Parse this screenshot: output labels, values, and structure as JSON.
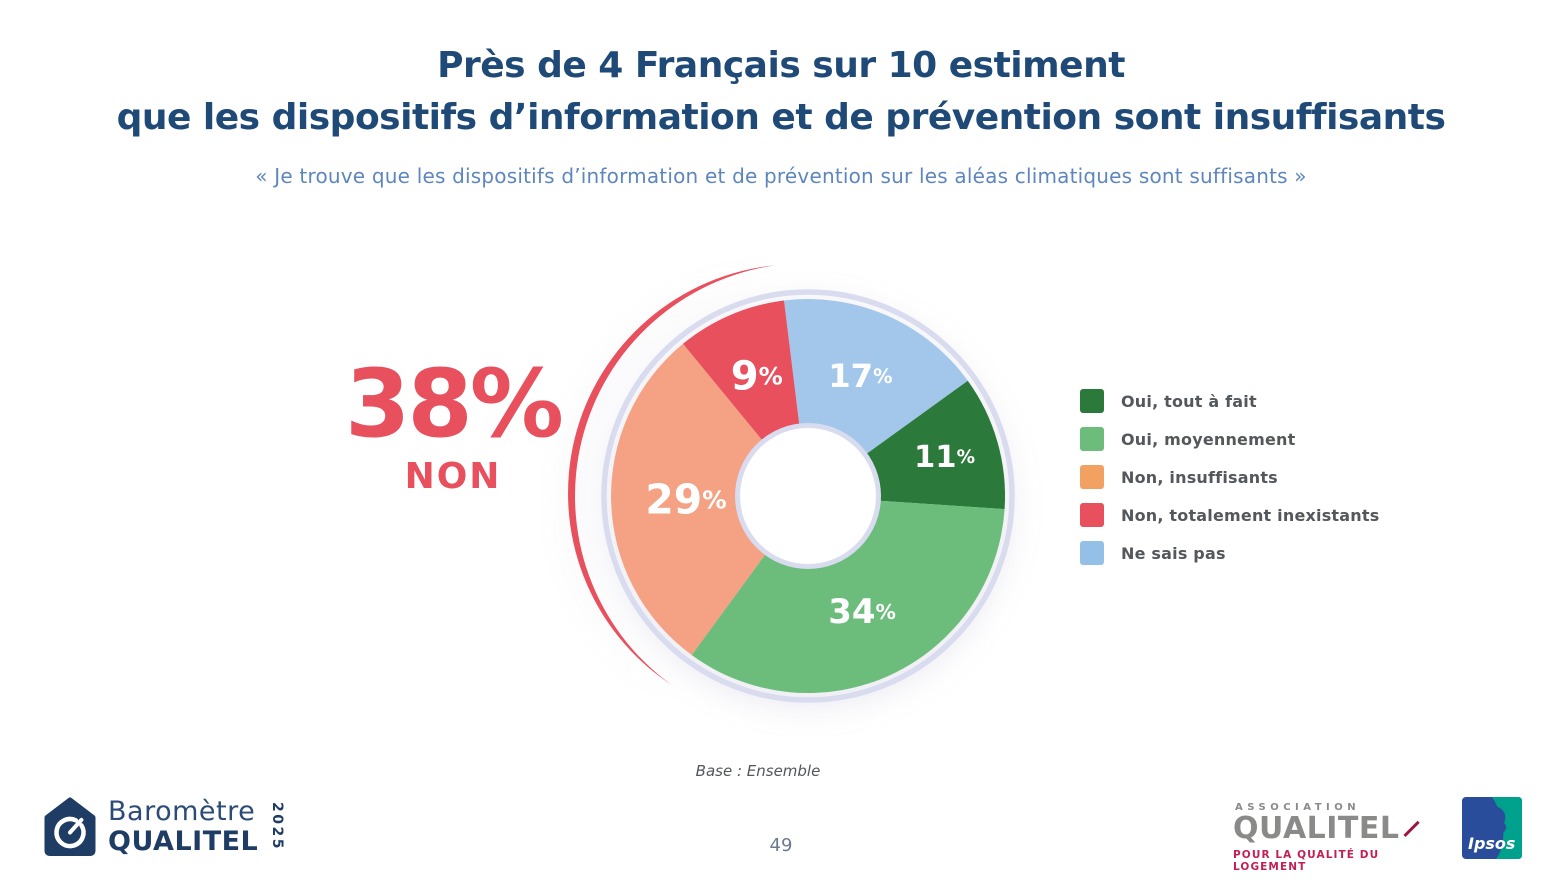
{
  "slide": {
    "title_line1": "Près de 4 Français sur 10 estiment",
    "title_line2": "que les dispositifs d’information et de prévention sont insuffisants",
    "subtitle": "« Je trouve que les dispositifs d’information et de prévention sur les aléas climatiques sont suffisants »",
    "base_note": "Base : Ensemble",
    "page_number": "49"
  },
  "chart_data": {
    "type": "pie",
    "subtype": "donut",
    "unit": "%",
    "direction": "clockwise",
    "start_angle_deg": -7,
    "ring_color": "#D9DBEF",
    "slices": [
      {
        "label": "Ne sais pas",
        "value": 17,
        "color": "#A3C7EB",
        "label_r": 131,
        "label_scale": 0.95
      },
      {
        "label": "Oui, tout à fait",
        "value": 11,
        "color": "#2B7A3B",
        "label_r": 142,
        "label_scale": 0.9
      },
      {
        "label": "Oui, moyennement",
        "value": 34,
        "color": "#6CBD7C",
        "label_r": 128,
        "label_scale": 1.0
      },
      {
        "label": "Non, insuffisants",
        "value": 29,
        "color": "#F5A183",
        "label_r": 122,
        "label_scale": 1.2
      },
      {
        "label": "Non, totalement inexistants",
        "value": 9,
        "color": "#E8505E",
        "label_r": 130,
        "label_scale": 1.18
      }
    ],
    "legend_position": "right",
    "legend": [
      {
        "label": "Oui, tout à fait",
        "color": "#2B7A3B"
      },
      {
        "label": "Oui, moyennement",
        "color": "#6CBD7C"
      },
      {
        "label": "Non, insuffisants",
        "color": "#F1A263"
      },
      {
        "label": "Non, totalement inexistants",
        "color": "#E8505E"
      },
      {
        "label": "Ne sais pas",
        "color": "#94C0E8"
      }
    ],
    "highlight": {
      "text": "38%",
      "sub": "NON",
      "value": 38,
      "color": "#E8505E",
      "covers": [
        "Non, insuffisants",
        "Non, totalement inexistants"
      ],
      "arc_from_deg": 216,
      "arc_to_deg": 352
    }
  },
  "footer": {
    "barometre_logo": {
      "line1": "Baromètre",
      "line2": "QUALITEL",
      "year": "2025",
      "color": "#1E3C64"
    },
    "qualitel_association_logo": {
      "top": "ASSOCIATION",
      "name": "QUALITEL",
      "tagline": "POUR LA QUALITÉ DU LOGEMENT",
      "diamond_color": "#9C1843"
    },
    "ipsos_logo": {
      "text": "Ipsos",
      "blue": "#2A4D9B",
      "teal": "#00A18C"
    }
  }
}
